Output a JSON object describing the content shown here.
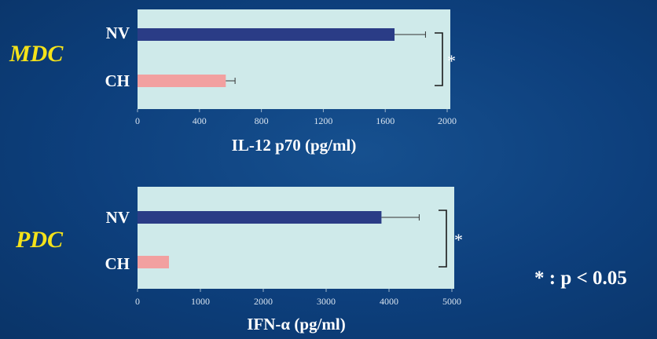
{
  "chart_data": [
    {
      "type": "bar",
      "orientation": "horizontal",
      "group_label": "MDC",
      "categories": [
        "NV",
        "CH"
      ],
      "values": [
        1660,
        570
      ],
      "errors": [
        200,
        60
      ],
      "xlabel": "IL-12 p70 (pg/ml)",
      "xlim": [
        0,
        2000
      ],
      "ticks": [
        0,
        400,
        800,
        1200,
        1600,
        2000
      ],
      "significance": "*",
      "colors": {
        "NV": "#2a3c86",
        "CH": "#f2a0a0"
      }
    },
    {
      "type": "bar",
      "orientation": "horizontal",
      "group_label": "PDC",
      "categories": [
        "NV",
        "CH"
      ],
      "values": [
        3880,
        500
      ],
      "errors": [
        600,
        0
      ],
      "xlabel": "IFN-α (pg/ml)",
      "xlim": [
        0,
        5000
      ],
      "ticks": [
        0,
        1000,
        2000,
        3000,
        4000,
        5000
      ],
      "significance": "*",
      "colors": {
        "NV": "#2a3c86",
        "CH": "#f2a0a0"
      }
    }
  ],
  "footnote": "* : p < 0.05",
  "plot_background": "#cfeaea"
}
